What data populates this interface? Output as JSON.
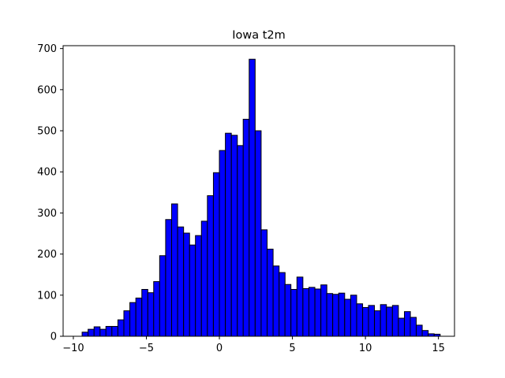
{
  "chart_data": {
    "type": "bar",
    "title": "Iowa t2m",
    "xlabel": "",
    "ylabel": "",
    "xlim": [
      -10.7,
      16.1
    ],
    "ylim": [
      0,
      707
    ],
    "xticks": [
      -10,
      -5,
      0,
      5,
      10,
      15
    ],
    "yticks": [
      0,
      100,
      200,
      300,
      400,
      500,
      600,
      700
    ],
    "bin_width": 0.4085,
    "bar_color": "#0000ff",
    "edge_color": "#000000",
    "bins": [
      {
        "x0": -9.4,
        "count": 10
      },
      {
        "x0": -8.99,
        "count": 17
      },
      {
        "x0": -8.58,
        "count": 23
      },
      {
        "x0": -8.17,
        "count": 17
      },
      {
        "x0": -7.77,
        "count": 24
      },
      {
        "x0": -7.36,
        "count": 24
      },
      {
        "x0": -6.95,
        "count": 40
      },
      {
        "x0": -6.54,
        "count": 62
      },
      {
        "x0": -6.13,
        "count": 82
      },
      {
        "x0": -5.72,
        "count": 93
      },
      {
        "x0": -5.31,
        "count": 114
      },
      {
        "x0": -4.9,
        "count": 106
      },
      {
        "x0": -4.5,
        "count": 133
      },
      {
        "x0": -4.09,
        "count": 196
      },
      {
        "x0": -3.68,
        "count": 284
      },
      {
        "x0": -3.27,
        "count": 322
      },
      {
        "x0": -2.86,
        "count": 266
      },
      {
        "x0": -2.45,
        "count": 251
      },
      {
        "x0": -2.04,
        "count": 222
      },
      {
        "x0": -1.64,
        "count": 245
      },
      {
        "x0": -1.23,
        "count": 280
      },
      {
        "x0": -0.82,
        "count": 342
      },
      {
        "x0": -0.41,
        "count": 398
      },
      {
        "x0": 0.0,
        "count": 452
      },
      {
        "x0": 0.41,
        "count": 494
      },
      {
        "x0": 0.82,
        "count": 489
      },
      {
        "x0": 1.23,
        "count": 464
      },
      {
        "x0": 1.63,
        "count": 528
      },
      {
        "x0": 2.04,
        "count": 674
      },
      {
        "x0": 2.45,
        "count": 500
      },
      {
        "x0": 2.86,
        "count": 259
      },
      {
        "x0": 3.27,
        "count": 212
      },
      {
        "x0": 3.68,
        "count": 171
      },
      {
        "x0": 4.09,
        "count": 155
      },
      {
        "x0": 4.49,
        "count": 126
      },
      {
        "x0": 4.9,
        "count": 114
      },
      {
        "x0": 5.31,
        "count": 144
      },
      {
        "x0": 5.72,
        "count": 116
      },
      {
        "x0": 6.13,
        "count": 119
      },
      {
        "x0": 6.54,
        "count": 115
      },
      {
        "x0": 6.95,
        "count": 125
      },
      {
        "x0": 7.35,
        "count": 104
      },
      {
        "x0": 7.76,
        "count": 102
      },
      {
        "x0": 8.17,
        "count": 105
      },
      {
        "x0": 8.58,
        "count": 90
      },
      {
        "x0": 8.99,
        "count": 100
      },
      {
        "x0": 9.4,
        "count": 79
      },
      {
        "x0": 9.81,
        "count": 70
      },
      {
        "x0": 10.21,
        "count": 75
      },
      {
        "x0": 10.62,
        "count": 62
      },
      {
        "x0": 11.03,
        "count": 77
      },
      {
        "x0": 11.44,
        "count": 71
      },
      {
        "x0": 11.85,
        "count": 75
      },
      {
        "x0": 12.26,
        "count": 44
      },
      {
        "x0": 12.67,
        "count": 60
      },
      {
        "x0": 13.07,
        "count": 46
      },
      {
        "x0": 13.48,
        "count": 27
      },
      {
        "x0": 13.89,
        "count": 14
      },
      {
        "x0": 14.3,
        "count": 6
      },
      {
        "x0": 14.71,
        "count": 5
      }
    ]
  }
}
